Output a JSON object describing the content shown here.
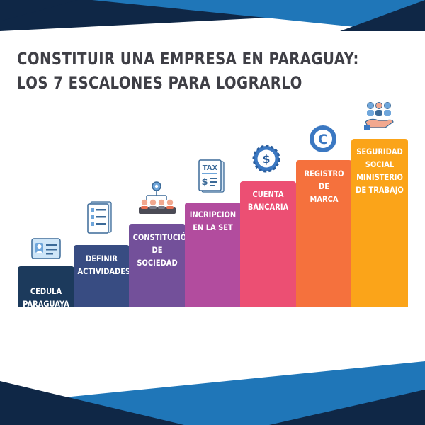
{
  "title": {
    "line1": "CONSTITUIR UNA EMPRESA EN PARAGUAY:",
    "line2": "LOS 7 ESCALONES PARA LOGRARLO"
  },
  "steps": [
    {
      "label": "CEDULA\nPARAGUAYA",
      "color": "#1c3a5c",
      "icon": "id-card-icon"
    },
    {
      "label": "DEFINIR\nACTIVIDADES",
      "color": "#384c82",
      "icon": "checklist-icon"
    },
    {
      "label": "CONSTITUCIÓN\nDE\nSOCIEDAD",
      "color": "#73509a",
      "icon": "meeting-icon"
    },
    {
      "label": "INCRIPCIÓN\nEN LA SET",
      "color": "#b24c9e",
      "icon": "tax-document-icon"
    },
    {
      "label": "CUENTA\nBANCARIA",
      "color": "#ec4f73",
      "icon": "dollar-coin-icon"
    },
    {
      "label": "REGISTRO\nDE\nMARCA",
      "color": "#f5713d",
      "icon": "copyright-icon"
    },
    {
      "label": "SEGURIDAD\nSOCIAL\nMINISTERIO\nDE TRABAJO",
      "color": "#fba419",
      "icon": "people-in-hand-icon"
    }
  ],
  "colors": {
    "navy": "#0f2746",
    "blue": "#1f76b8",
    "title": "#3f3f46"
  }
}
